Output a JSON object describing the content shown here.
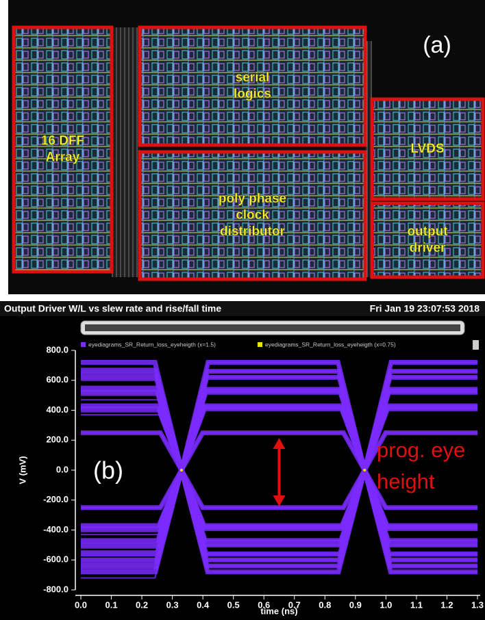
{
  "panel_a": {
    "label": "(a)",
    "blocks": [
      {
        "lines": [
          "16 DFF",
          "Array"
        ]
      },
      {
        "lines": [
          "serial",
          "logics"
        ]
      },
      {
        "lines": [
          "poly phase",
          "clock",
          "distributor"
        ]
      },
      {
        "lines": [
          "LVDS"
        ]
      },
      {
        "lines": [
          "output",
          "driver"
        ]
      }
    ]
  },
  "chart_data": {
    "type": "eye",
    "title": "Output Driver W/L vs slew rate and rise/fall time",
    "timestamp": "Fri Jan 19 23:07:53 2018",
    "panel_label": "(b)",
    "annotation": [
      "prog. eye",
      "height"
    ],
    "x_label": "time (ns)",
    "y_label": "V (mV)",
    "xlim": [
      0,
      1.3
    ],
    "ylim": [
      -800,
      800
    ],
    "xticks": [
      {
        "value": 0,
        "label": "0.0"
      },
      0.1,
      0.2,
      0.3,
      0.4,
      0.5,
      0.6,
      0.7,
      0.8,
      0.9,
      {
        "value": 1,
        "label": "1.0"
      },
      1.1,
      1.2,
      1.3
    ],
    "yticks": [
      {
        "value": 800,
        "label": "800.0"
      },
      {
        "value": 600,
        "label": "600.0"
      },
      {
        "value": 400,
        "label": "400.0"
      },
      {
        "value": 200,
        "label": "200.0"
      },
      {
        "value": 0,
        "label": "0.0"
      },
      {
        "value": -200,
        "label": "-200.0"
      },
      {
        "value": -400,
        "label": "-400.0"
      },
      {
        "value": -600,
        "label": "-600.0"
      },
      {
        "value": -800,
        "label": "-800.0"
      }
    ],
    "crossings": [
      0.33,
      0.93
    ],
    "series": [
      {
        "name": "eyediagrams_SR_Return_loss_eyeheigth (x=1.5)",
        "color": "#7b2cff",
        "values": [
          720,
          660,
          620,
          540,
          520,
          430,
          410,
          250,
          -250,
          -370,
          -390,
          -470,
          -500,
          -560,
          -600,
          -640,
          -680
        ]
      },
      {
        "name": "eyediagrams_SR_Return_loss_eyeheigth (x=0.75)",
        "color": "#e6e600"
      }
    ]
  }
}
